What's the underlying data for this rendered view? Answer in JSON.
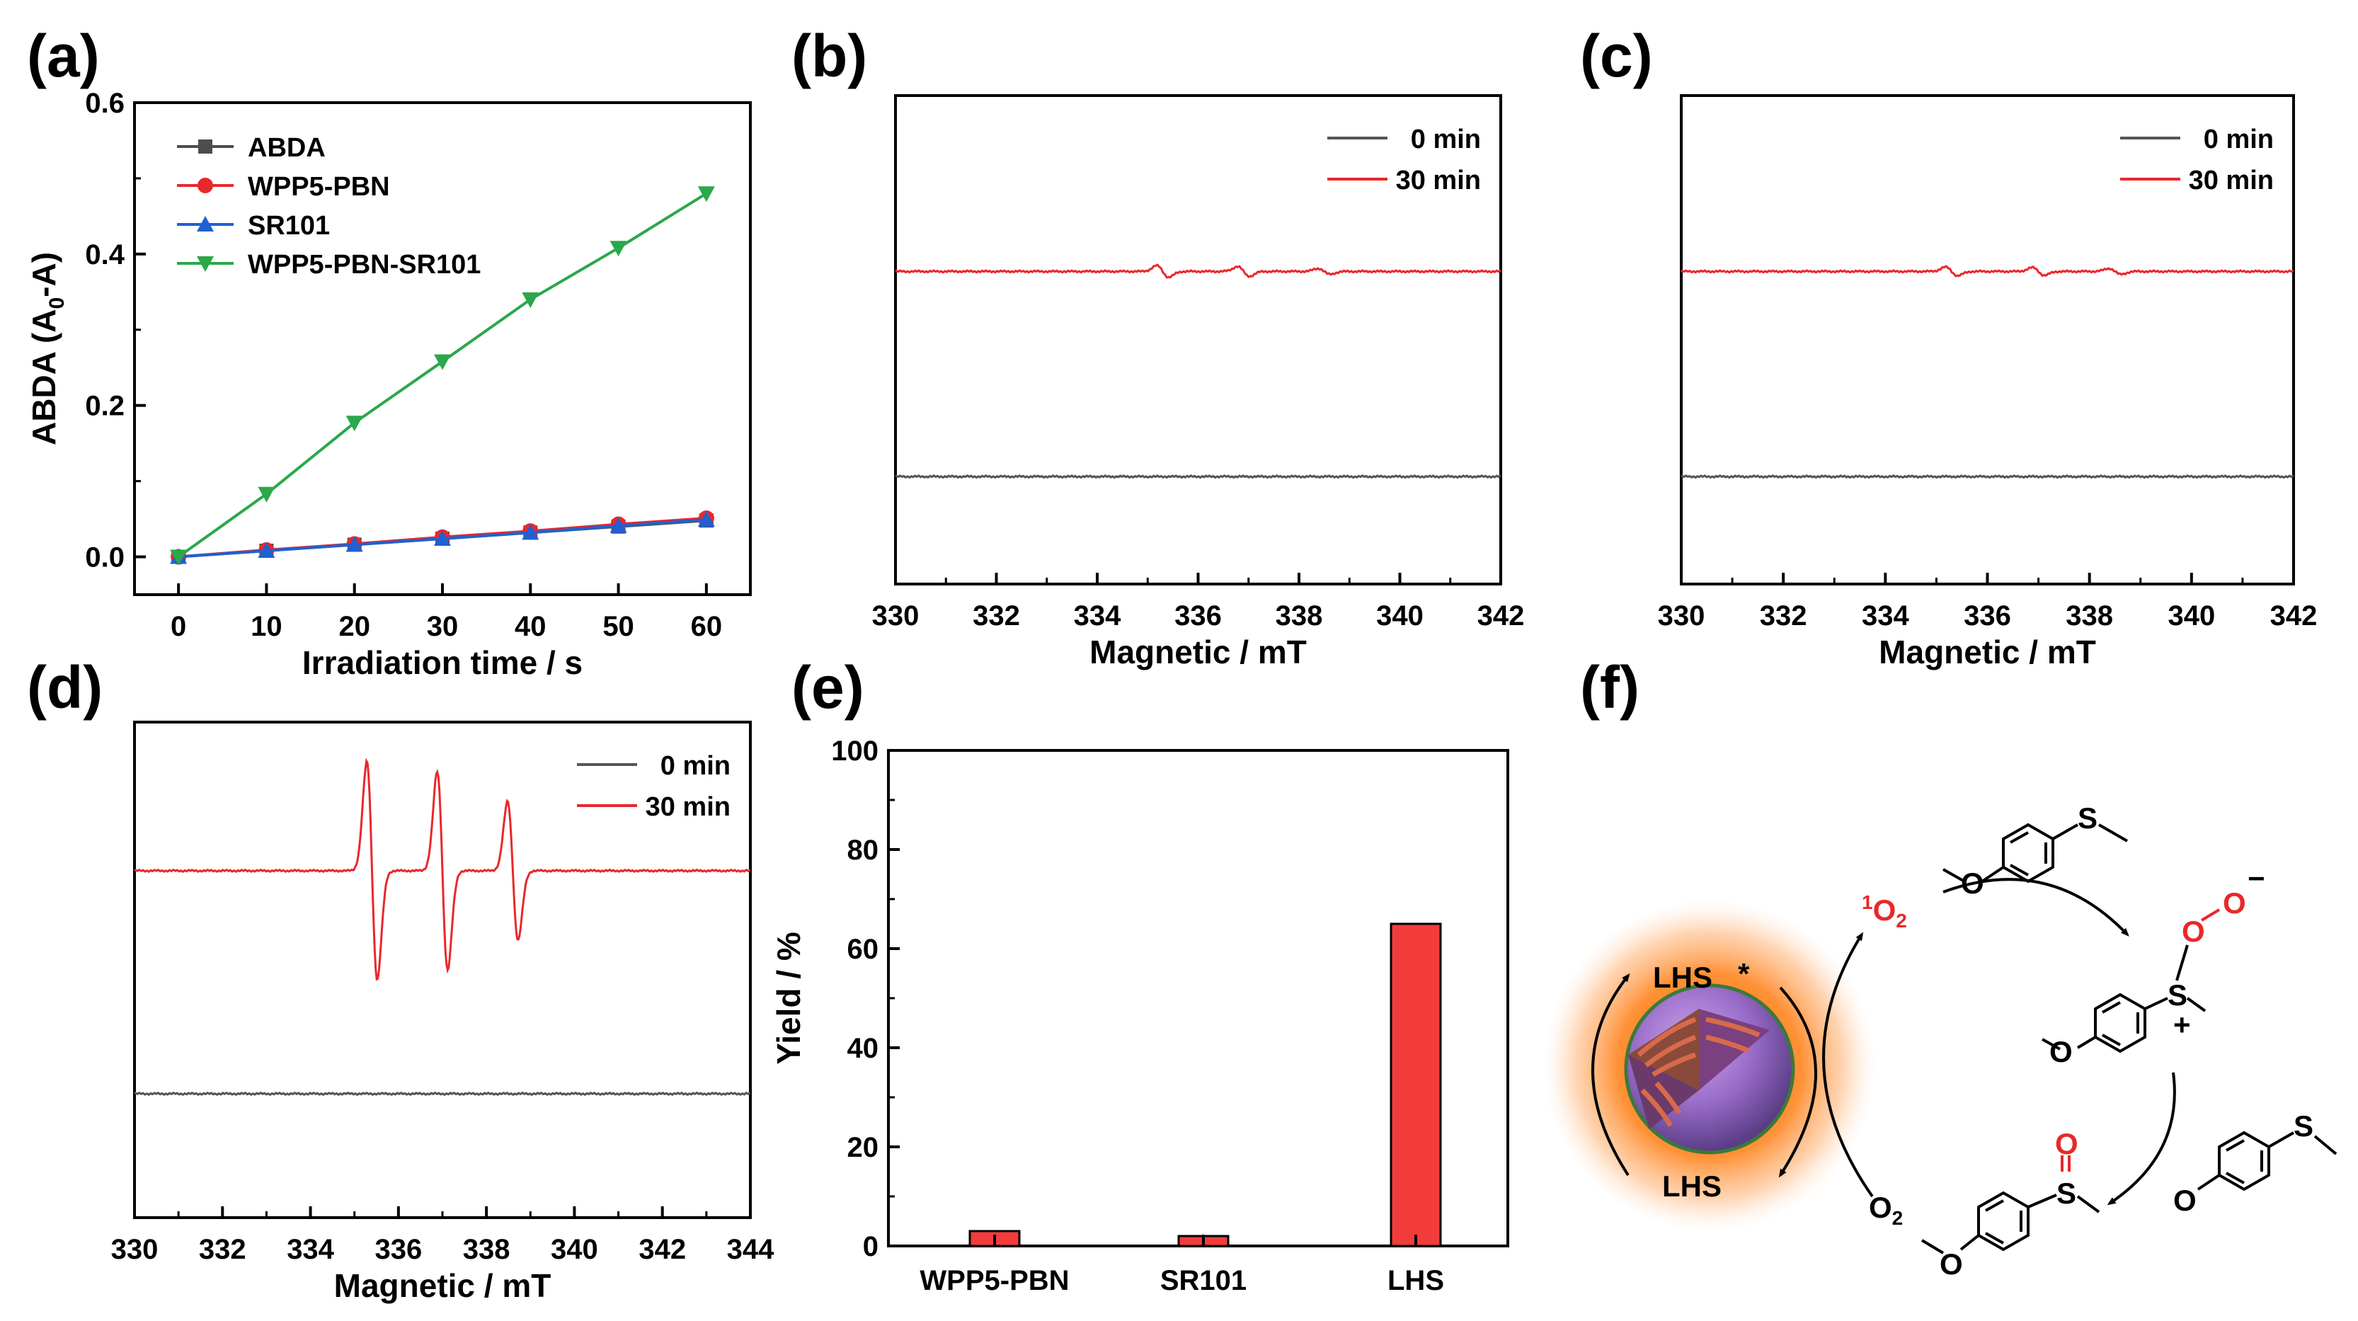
{
  "figure": {
    "panel_labels": [
      "(a)",
      "(b)",
      "(c)",
      "(d)",
      "(e)",
      "(f)"
    ]
  },
  "chart_data": [
    {
      "panel": "(a)",
      "type": "line",
      "xlabel": "Irradiation time / s",
      "ylabel": "ABDA (A0-A)",
      "ylabel_parts": {
        "pre": "ABDA (A",
        "sub": "0",
        "post": "-A)"
      },
      "xlim": [
        -5,
        65
      ],
      "ylim": [
        -0.05,
        0.6
      ],
      "x": [
        0,
        10,
        20,
        30,
        40,
        50,
        60
      ],
      "xticks": [
        0,
        10,
        20,
        30,
        40,
        50,
        60
      ],
      "yticks": [
        0.0,
        0.2,
        0.4,
        0.6
      ],
      "ytick_labels": [
        "0.0",
        "0.2",
        "0.4",
        "0.6"
      ],
      "legend_position": "top-left",
      "series": [
        {
          "name": "ABDA",
          "color": "#4d4d4d",
          "marker": "square",
          "values": [
            0,
            0.008,
            0.016,
            0.024,
            0.032,
            0.04,
            0.048
          ]
        },
        {
          "name": "WPP5-PBN",
          "color": "#e8282b",
          "marker": "circle",
          "values": [
            0,
            0.009,
            0.017,
            0.026,
            0.034,
            0.043,
            0.051
          ]
        },
        {
          "name": "SR101",
          "color": "#2060d0",
          "marker": "triangle-up",
          "values": [
            0,
            0.008,
            0.016,
            0.024,
            0.032,
            0.041,
            0.049
          ]
        },
        {
          "name": "WPP5-PBN-SR101",
          "color": "#2aa84a",
          "marker": "triangle-down",
          "values": [
            0,
            0.083,
            0.177,
            0.258,
            0.34,
            0.408,
            0.48
          ]
        }
      ]
    },
    {
      "panel": "(b)",
      "type": "line",
      "xlabel": "Magnetic / mT",
      "ylabel": "",
      "xlim": [
        330,
        342
      ],
      "xticks": [
        330,
        332,
        334,
        336,
        338,
        340,
        342
      ],
      "ylim": [
        0,
        1
      ],
      "legend_position": "top-right",
      "series": [
        {
          "name": "0 min",
          "color": "#555555",
          "baseline": 0.22,
          "peaks": []
        },
        {
          "name": "30 min",
          "color": "#e8282b",
          "baseline": 0.64,
          "peaks": [
            [
              335.3,
              0.012
            ],
            [
              336.9,
              0.01
            ],
            [
              338.5,
              0.006
            ]
          ]
        }
      ]
    },
    {
      "panel": "(c)",
      "type": "line",
      "xlabel": "Magnetic / mT",
      "ylabel": "",
      "xlim": [
        330,
        342
      ],
      "xticks": [
        330,
        332,
        334,
        336,
        338,
        340,
        342
      ],
      "ylim": [
        0,
        1
      ],
      "legend_position": "top-right",
      "series": [
        {
          "name": "0 min",
          "color": "#555555",
          "baseline": 0.22,
          "peaks": []
        },
        {
          "name": "30 min",
          "color": "#e8282b",
          "baseline": 0.64,
          "peaks": [
            [
              335.3,
              0.009
            ],
            [
              337.0,
              0.008
            ],
            [
              338.5,
              0.006
            ]
          ]
        }
      ]
    },
    {
      "panel": "(d)",
      "type": "line",
      "xlabel": "Magnetic / mT",
      "ylabel": "",
      "xlim": [
        330,
        344
      ],
      "xticks": [
        330,
        332,
        334,
        336,
        338,
        340,
        342,
        344
      ],
      "ylim": [
        0,
        1
      ],
      "legend_position": "top-right",
      "series": [
        {
          "name": "0 min",
          "color": "#555555",
          "baseline": 0.25,
          "peaks": []
        },
        {
          "name": "30 min",
          "color": "#e8282b",
          "baseline": 0.7,
          "peaks": [
            [
              335.4,
              0.22
            ],
            [
              337.0,
              0.2
            ],
            [
              338.6,
              0.14
            ]
          ]
        }
      ]
    },
    {
      "panel": "(e)",
      "type": "bar",
      "xlabel": "",
      "ylabel": "Yield / %",
      "categories": [
        "WPP5-PBN",
        "SR101",
        "LHS"
      ],
      "values": [
        3,
        2,
        65
      ],
      "ylim": [
        0,
        100
      ],
      "yticks": [
        0,
        20,
        40,
        60,
        80,
        100
      ],
      "color": "#f23c3c"
    }
  ],
  "scheme": {
    "panel": "(f)",
    "lhs_excited": "LHS",
    "lhs_excited_mark": "*",
    "lhs_ground": "LHS",
    "singlet_oxygen": {
      "sup": "1",
      "main": "O",
      "sub": "2"
    },
    "oxygen": {
      "main": "O",
      "sub": "2"
    },
    "sulfur": "S",
    "oxygen_atom": "O",
    "plus": "+",
    "minus": "−",
    "colors": {
      "red": "#e8282b",
      "sphere": "#8e5fc0",
      "glow": "#ff8a2a",
      "stripe": "#c9513f"
    }
  }
}
